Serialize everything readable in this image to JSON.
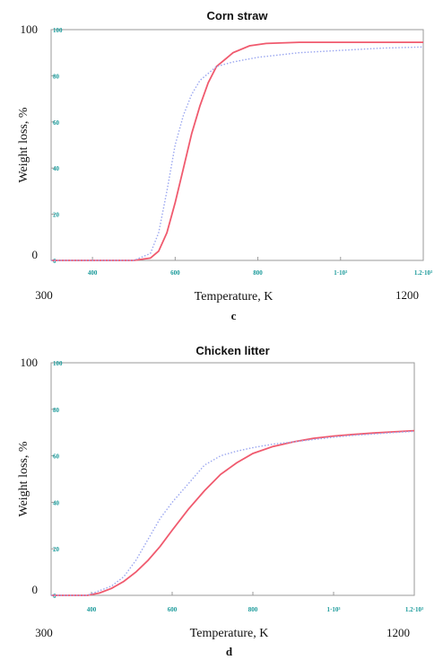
{
  "colors": {
    "model": "#f05a6e",
    "experiment": "#9aa6f0",
    "inner_ticks": "#1a9a9a",
    "frame": "#9a9a9a"
  },
  "chart_data": [
    {
      "type": "line",
      "title": "Corn straw",
      "panel_label": "c",
      "xlabel": "Temperature, K",
      "ylabel": "Weight loss, %",
      "xlim": [
        300,
        1200
      ],
      "ylim": [
        0,
        100
      ],
      "outer_x_ticks": [
        "300",
        "1200"
      ],
      "outer_y_ticks": [
        "100",
        "0"
      ],
      "inner_x_ticks": [
        {
          "value": 400,
          "label": "400"
        },
        {
          "value": 600,
          "label": "600"
        },
        {
          "value": 800,
          "label": "800"
        },
        {
          "value": 1000,
          "label": "1·10³"
        },
        {
          "value": 1200,
          "label": "1.2·10³"
        }
      ],
      "inner_y_ticks": [
        {
          "value": 100,
          "label": "100"
        },
        {
          "value": 80,
          "label": "80"
        },
        {
          "value": 60,
          "label": "60"
        },
        {
          "value": 40,
          "label": "40"
        },
        {
          "value": 20,
          "label": "20"
        },
        {
          "value": 0,
          "label": "0"
        }
      ],
      "series": [
        {
          "style": "solid",
          "x": [
            300,
            500,
            540,
            560,
            580,
            600,
            620,
            640,
            660,
            680,
            700,
            740,
            780,
            820,
            900,
            1000,
            1100,
            1200
          ],
          "y": [
            0,
            0,
            1,
            4,
            12,
            25,
            40,
            55,
            67,
            77,
            84,
            90,
            93,
            94,
            94.5,
            94.5,
            94.5,
            94.5
          ]
        },
        {
          "style": "dotted",
          "x": [
            300,
            500,
            540,
            560,
            580,
            600,
            620,
            640,
            660,
            680,
            700,
            740,
            800,
            900,
            1000,
            1100,
            1200
          ],
          "y": [
            0,
            0,
            3,
            12,
            30,
            50,
            63,
            72,
            78,
            81,
            84,
            86,
            88,
            90,
            91,
            92,
            92.5
          ]
        }
      ]
    },
    {
      "type": "line",
      "title": "Chicken litter",
      "panel_label": "d",
      "xlabel": "Temperature, K",
      "ylabel": "Weight loss, %",
      "xlim": [
        300,
        1200
      ],
      "ylim": [
        0,
        100
      ],
      "outer_x_ticks": [
        "300",
        "1200"
      ],
      "outer_y_ticks": [
        "100",
        "0"
      ],
      "inner_x_ticks": [
        {
          "value": 400,
          "label": "400"
        },
        {
          "value": 600,
          "label": "600"
        },
        {
          "value": 800,
          "label": "800"
        },
        {
          "value": 1000,
          "label": "1·10³"
        },
        {
          "value": 1200,
          "label": "1.2·10³"
        }
      ],
      "inner_y_ticks": [
        {
          "value": 100,
          "label": "100"
        },
        {
          "value": 80,
          "label": "80"
        },
        {
          "value": 60,
          "label": "60"
        },
        {
          "value": 40,
          "label": "40"
        },
        {
          "value": 20,
          "label": "20"
        },
        {
          "value": 0,
          "label": "0"
        }
      ],
      "series": [
        {
          "style": "solid",
          "x": [
            300,
            390,
            420,
            450,
            480,
            510,
            540,
            570,
            600,
            640,
            680,
            720,
            760,
            800,
            850,
            900,
            950,
            1000,
            1050,
            1100,
            1150,
            1200
          ],
          "y": [
            0,
            0,
            1,
            3,
            6,
            10,
            15,
            21,
            28,
            37,
            45,
            52,
            57,
            61,
            64,
            66,
            67.5,
            68.5,
            69.2,
            69.8,
            70.3,
            70.8
          ]
        },
        {
          "style": "dotted",
          "x": [
            300,
            390,
            420,
            450,
            480,
            510,
            540,
            570,
            600,
            640,
            680,
            720,
            760,
            800,
            850,
            900,
            950,
            1000,
            1050,
            1100,
            1150,
            1200
          ],
          "y": [
            0,
            0,
            2,
            4,
            8,
            15,
            24,
            33,
            40,
            48,
            56,
            60,
            62,
            63.5,
            65,
            66,
            67,
            68,
            68.8,
            69.4,
            70,
            70.5
          ]
        }
      ]
    }
  ]
}
